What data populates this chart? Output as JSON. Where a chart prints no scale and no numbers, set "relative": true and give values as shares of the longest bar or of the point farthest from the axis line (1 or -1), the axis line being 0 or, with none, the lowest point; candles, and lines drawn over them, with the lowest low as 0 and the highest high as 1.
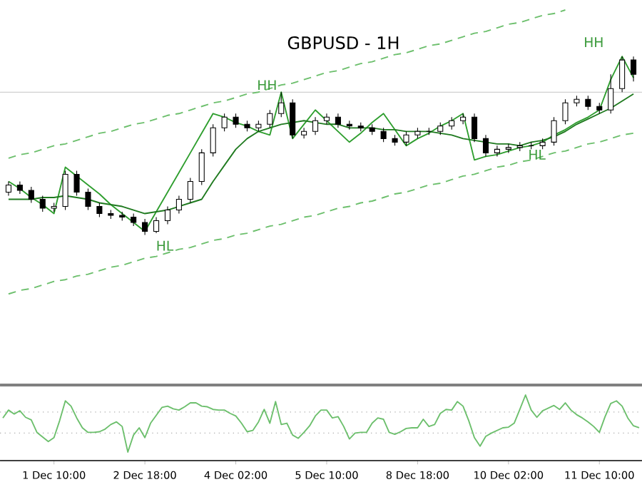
{
  "chart_data": [
    {
      "type": "candlestick",
      "title": "GBPUSD - 1H",
      "relative": true,
      "tick_labels": false,
      "categories": [
        null,
        null,
        null,
        null,
        null,
        null,
        null,
        null,
        null,
        null,
        null,
        null,
        null,
        null,
        null,
        null,
        null,
        null,
        null,
        null,
        null,
        null,
        null,
        null,
        null,
        null,
        null,
        null,
        null,
        null,
        null,
        null,
        null,
        null,
        null,
        null,
        null,
        null,
        null,
        null,
        null,
        null,
        null,
        null,
        null,
        null,
        null,
        null,
        null,
        null,
        null,
        null,
        null,
        null,
        null,
        null
      ],
      "ohlc": [
        [
          0.24,
          0.3,
          0.22,
          0.28
        ],
        [
          0.28,
          0.3,
          0.23,
          0.25
        ],
        [
          0.25,
          0.27,
          0.18,
          0.2
        ],
        [
          0.2,
          0.22,
          0.13,
          0.15
        ],
        [
          0.15,
          0.18,
          0.13,
          0.16
        ],
        [
          0.16,
          0.36,
          0.14,
          0.34
        ],
        [
          0.34,
          0.36,
          0.22,
          0.24
        ],
        [
          0.24,
          0.26,
          0.14,
          0.16
        ],
        [
          0.16,
          0.18,
          0.1,
          0.12
        ],
        [
          0.12,
          0.14,
          0.09,
          0.11
        ],
        [
          0.11,
          0.13,
          0.08,
          0.1
        ],
        [
          0.1,
          0.12,
          0.05,
          0.07
        ],
        [
          0.07,
          0.09,
          0,
          0.02
        ],
        [
          0.02,
          0.1,
          0.01,
          0.08
        ],
        [
          0.08,
          0.16,
          0.06,
          0.14
        ],
        [
          0.14,
          0.22,
          0.12,
          0.2
        ],
        [
          0.2,
          0.32,
          0.18,
          0.3
        ],
        [
          0.3,
          0.48,
          0.28,
          0.46
        ],
        [
          0.46,
          0.62,
          0.44,
          0.6
        ],
        [
          0.6,
          0.68,
          0.58,
          0.66
        ],
        [
          0.66,
          0.68,
          0.6,
          0.62
        ],
        [
          0.62,
          0.64,
          0.58,
          0.6
        ],
        [
          0.6,
          0.64,
          0.58,
          0.62
        ],
        [
          0.62,
          0.7,
          0.6,
          0.68
        ],
        [
          0.68,
          0.8,
          0.66,
          0.74
        ],
        [
          0.74,
          0.76,
          0.54,
          0.56
        ],
        [
          0.56,
          0.6,
          0.54,
          0.58
        ],
        [
          0.58,
          0.66,
          0.56,
          0.64
        ],
        [
          0.64,
          0.68,
          0.62,
          0.66
        ],
        [
          0.66,
          0.68,
          0.6,
          0.62
        ],
        [
          0.62,
          0.64,
          0.59,
          0.61
        ],
        [
          0.61,
          0.63,
          0.58,
          0.6
        ],
        [
          0.6,
          0.62,
          0.56,
          0.58
        ],
        [
          0.58,
          0.6,
          0.52,
          0.54
        ],
        [
          0.54,
          0.56,
          0.5,
          0.52
        ],
        [
          0.52,
          0.58,
          0.5,
          0.56
        ],
        [
          0.56,
          0.6,
          0.54,
          0.58
        ],
        [
          0.58,
          0.6,
          0.56,
          0.58
        ],
        [
          0.58,
          0.63,
          0.56,
          0.61
        ],
        [
          0.61,
          0.66,
          0.59,
          0.64
        ],
        [
          0.64,
          0.68,
          0.62,
          0.66
        ],
        [
          0.66,
          0.68,
          0.52,
          0.54
        ],
        [
          0.54,
          0.56,
          0.44,
          0.46
        ],
        [
          0.46,
          0.5,
          0.44,
          0.48
        ],
        [
          0.48,
          0.51,
          0.46,
          0.49
        ],
        [
          0.49,
          0.52,
          0.47,
          0.5
        ],
        [
          0.5,
          0.52,
          0.48,
          0.5
        ],
        [
          0.5,
          0.54,
          0.48,
          0.52
        ],
        [
          0.52,
          0.66,
          0.5,
          0.64
        ],
        [
          0.64,
          0.76,
          0.62,
          0.74
        ],
        [
          0.74,
          0.78,
          0.72,
          0.76
        ],
        [
          0.76,
          0.78,
          0.7,
          0.72
        ],
        [
          0.72,
          0.74,
          0.68,
          0.7
        ],
        [
          0.7,
          0.9,
          0.68,
          0.82
        ],
        [
          0.82,
          1,
          0.8,
          0.98
        ],
        [
          0.98,
          1,
          0.86,
          0.9
        ]
      ],
      "series": [
        {
          "type": "line",
          "color": "#2e9e2e",
          "values": [
            0.3,
            0.26,
            0.21,
            0.17,
            0.12,
            0.38,
            0.33,
            0.28,
            0.23,
            0.17,
            0.12,
            0.07,
            0.02,
            0.13,
            0.24,
            0.35,
            0.46,
            0.57,
            0.68,
            0.66,
            0.63,
            0.61,
            0.58,
            0.56,
            0.8,
            0.54,
            0.62,
            0.7,
            0.64,
            0.58,
            0.52,
            0.57,
            0.63,
            0.68,
            0.59,
            0.5,
            0.54,
            0.57,
            0.61,
            0.64,
            0.68,
            0.42,
            0.44,
            0.45,
            0.47,
            0.49,
            0.5,
            0.52,
            0.56,
            0.59,
            0.63,
            0.66,
            0.7,
            0.87,
            1.0,
            0.88
          ]
        },
        {
          "type": "line",
          "color": "#1f7a1f",
          "values": [
            0.2,
            0.2,
            0.2,
            0.21,
            0.21,
            0.22,
            0.21,
            0.2,
            0.18,
            0.17,
            0.16,
            0.14,
            0.12,
            0.13,
            0.14,
            0.16,
            0.18,
            0.2,
            0.3,
            0.39,
            0.48,
            0.54,
            0.58,
            0.6,
            0.62,
            0.63,
            0.64,
            0.63,
            0.62,
            0.62,
            0.6,
            0.6,
            0.6,
            0.59,
            0.59,
            0.58,
            0.58,
            0.58,
            0.57,
            0.56,
            0.54,
            0.53,
            0.52,
            0.51,
            0.51,
            0.5,
            0.52,
            0.53,
            0.55,
            0.58,
            0.62,
            0.65,
            0.68,
            0.71,
            0.75,
            0.79
          ]
        },
        {
          "type": "line",
          "color": "#6cbf6c",
          "line_style": "dashed",
          "values": [
            0.43,
            0.45,
            0.46,
            0.48,
            0.5,
            0.51,
            0.53,
            0.55,
            0.57,
            0.58,
            0.6,
            0.62,
            0.63,
            0.65,
            0.67,
            0.68,
            0.7,
            0.72,
            0.74,
            0.75,
            0.77,
            0.79,
            0.8,
            0.82,
            0.84,
            0.85,
            0.87,
            0.89,
            0.91,
            0.92,
            0.94,
            0.96,
            0.97,
            0.99,
            1.01,
            1.02,
            1.04,
            1.06,
            1.07,
            1.09,
            1.11,
            1.13,
            1.14,
            1.16,
            1.18,
            1.19,
            1.21,
            1.23,
            1.24,
            1.26,
            null,
            null,
            null,
            null,
            null,
            null
          ]
        },
        {
          "type": "line",
          "color": "#6cbf6c",
          "line_style": "dashed",
          "values": [
            -0.33,
            -0.31,
            -0.3,
            -0.28,
            -0.26,
            -0.25,
            -0.23,
            -0.22,
            -0.2,
            -0.18,
            -0.17,
            -0.15,
            -0.13,
            -0.12,
            -0.1,
            -0.08,
            -0.07,
            -0.05,
            -0.03,
            -0.02,
            0,
            0.01,
            0.03,
            0.05,
            0.06,
            0.08,
            0.1,
            0.11,
            0.13,
            0.15,
            0.16,
            0.18,
            0.19,
            0.21,
            0.23,
            0.24,
            0.26,
            0.28,
            0.29,
            0.31,
            0.33,
            0.34,
            0.36,
            0.38,
            0.39,
            0.41,
            0.42,
            0.44,
            0.46,
            0.47,
            0.49,
            0.51,
            0.52,
            0.54,
            0.56,
            0.57
          ]
        }
      ],
      "ref_lines": [
        {
          "axis": "y",
          "value": 0.8,
          "color": "#d0d0d0"
        }
      ],
      "annotations": [
        "HH",
        "HL",
        "HH",
        "HL"
      ]
    },
    {
      "type": "line",
      "relative": true,
      "tick_labels": "x",
      "categories": [
        null,
        null,
        null,
        null,
        null,
        null,
        null,
        null,
        null,
        "1 Dec 10:00",
        null,
        null,
        null,
        null,
        null,
        null,
        null,
        null,
        null,
        null,
        null,
        null,
        null,
        null,
        null,
        "2 Dec 18:00",
        null,
        null,
        null,
        null,
        null,
        null,
        null,
        null,
        null,
        null,
        null,
        null,
        null,
        null,
        null,
        "4 Dec 02:00",
        null,
        null,
        null,
        null,
        null,
        null,
        null,
        null,
        null,
        null,
        null,
        null,
        null,
        null,
        null,
        "5 Dec 10:00",
        null,
        null,
        null,
        null,
        null,
        null,
        null,
        null,
        null,
        null,
        null,
        null,
        null,
        null,
        null,
        "8 Dec 18:00",
        null,
        null,
        null,
        null,
        null,
        null,
        null,
        null,
        null,
        null,
        null,
        null,
        null,
        null,
        null,
        "10 Dec 02:00",
        null,
        null,
        null,
        null,
        null,
        null,
        null,
        null,
        null,
        null,
        null,
        null,
        null,
        null,
        null,
        "11 Dec 10:00",
        null,
        null,
        null,
        null,
        null,
        null,
        null
      ],
      "ref_lines": [
        {
          "axis": "y",
          "value": 0.74,
          "color": "#b0b0b0",
          "line_style": "dotted"
        },
        {
          "axis": "y",
          "value": 0.42,
          "color": "#b0b0b0",
          "line_style": "dotted"
        }
      ],
      "series": [
        {
          "color": "#6cbf6c",
          "values": [
            0.65,
            0.77,
            0.71,
            0.76,
            0.66,
            0.62,
            0.43,
            0.36,
            0.29,
            0.35,
            0.61,
            0.91,
            0.83,
            0.65,
            0.5,
            0.43,
            0.43,
            0.44,
            0.48,
            0.55,
            0.59,
            0.52,
            0.13,
            0.39,
            0.5,
            0.35,
            0.57,
            0.69,
            0.81,
            0.83,
            0.79,
            0.77,
            0.82,
            0.88,
            0.88,
            0.83,
            0.82,
            0.78,
            0.77,
            0.77,
            0.72,
            0.68,
            0.57,
            0.44,
            0.46,
            0.59,
            0.78,
            0.57,
            0.9,
            0.55,
            0.57,
            0.39,
            0.34,
            0.43,
            0.53,
            0.68,
            0.77,
            0.77,
            0.65,
            0.67,
            0.52,
            0.33,
            0.42,
            0.43,
            0.43,
            0.57,
            0.65,
            0.63,
            0.43,
            0.4,
            0.44,
            0.49,
            0.5,
            0.5,
            0.63,
            0.52,
            0.55,
            0.72,
            0.78,
            0.77,
            0.9,
            0.83,
            0.61,
            0.35,
            0.22,
            0.37,
            0.42,
            0.46,
            0.5,
            0.51,
            0.57,
            0.78,
            1,
            0.77,
            0.66,
            0.76,
            0.8,
            0.84,
            0.78,
            0.88,
            0.77,
            0.7,
            0.65,
            0.59,
            0.52,
            0.43,
            0.67,
            0.87,
            0.91,
            0.83,
            0.65,
            0.53,
            0.5
          ]
        }
      ]
    }
  ]
}
